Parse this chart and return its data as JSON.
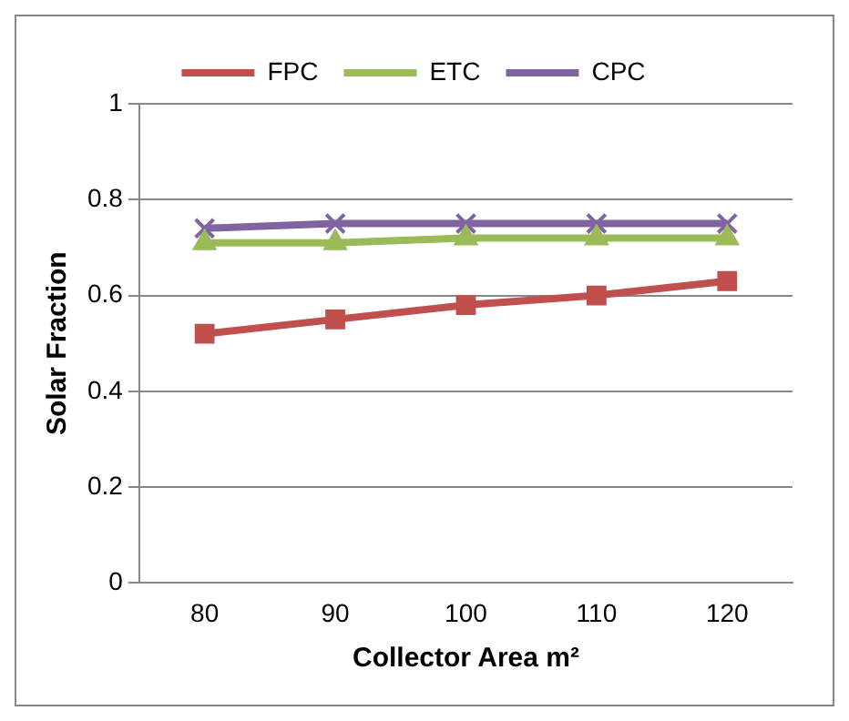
{
  "chart_data": {
    "type": "line",
    "xlabel": "Collector Area m²",
    "ylabel": "Solar Fraction",
    "categories": [
      "80",
      "90",
      "100",
      "110",
      "120"
    ],
    "series": [
      {
        "name": "FPC",
        "color": "#c0504d",
        "marker": "square",
        "values": [
          0.52,
          0.55,
          0.58,
          0.6,
          0.63
        ]
      },
      {
        "name": "ETC",
        "color": "#9bbb59",
        "marker": "triangle",
        "values": [
          0.71,
          0.71,
          0.72,
          0.72,
          0.72
        ]
      },
      {
        "name": "CPC",
        "color": "#8064a2",
        "marker": "cross",
        "values": [
          0.74,
          0.75,
          0.75,
          0.75,
          0.75
        ]
      }
    ],
    "ylim": [
      0,
      1
    ],
    "yticks": [
      0,
      0.2,
      0.4,
      0.6,
      0.8,
      1
    ],
    "grid": "y",
    "legend": "top",
    "line_style": "solid"
  }
}
